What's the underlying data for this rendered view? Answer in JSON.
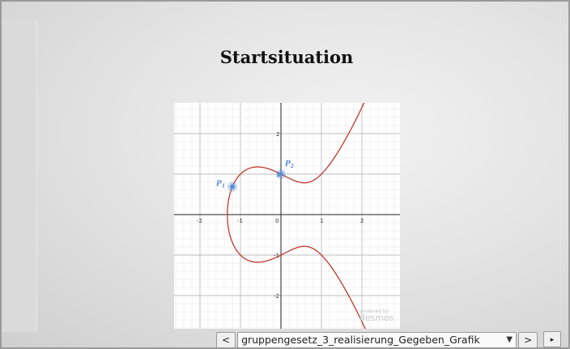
{
  "slide": {
    "title": "Startsituation"
  },
  "graph": {
    "x_ticks": [
      "-2",
      "-1",
      "0",
      "1",
      "2"
    ],
    "y_ticks": [
      "2",
      "1",
      "-1",
      "-2"
    ],
    "points": [
      {
        "name": "P",
        "subscript": "1"
      },
      {
        "name": "P",
        "subscript": "2"
      }
    ],
    "watermark_line1": "powered by",
    "watermark_line2": "desmos",
    "curve_color": "#c0392b",
    "point_color": "#5b8fd6"
  },
  "nav": {
    "prev_label": "<",
    "next_label": ">",
    "selected_slide": "gruppengesetz_3_realisierung_Gegeben_Grafik",
    "play_label": "▸"
  }
}
